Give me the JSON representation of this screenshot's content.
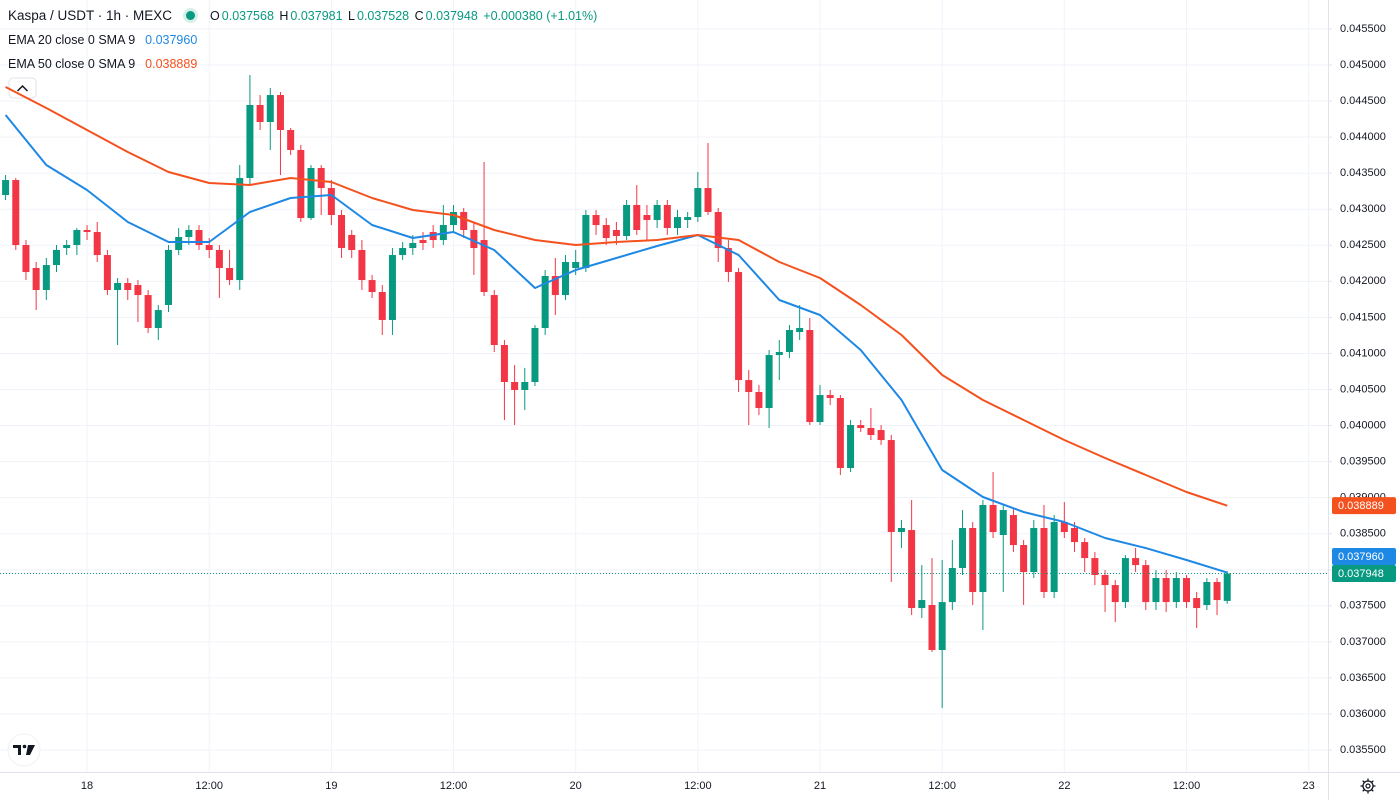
{
  "chart_data": {
    "type": "candlestick",
    "title": "Kaspa / USDT · 1h · MEXC",
    "ohlc_labels": [
      "O",
      "H",
      "L",
      "C"
    ],
    "change": "+0.000380 (+1.01%)",
    "up_color": "#089981",
    "down_color": "#f23645",
    "grid": true,
    "open": [
      0.043197,
      0.043405,
      0.042504,
      0.042185,
      0.04188,
      0.042226,
      0.042462,
      0.042504,
      0.042712,
      0.042684,
      0.042365,
      0.04188,
      0.041977,
      0.041949,
      0.04181,
      0.041353,
      0.041672,
      0.042435,
      0.042615,
      0.042712,
      0.042504,
      0.042435,
      0.042185,
      0.042018,
      0.043433,
      0.044446,
      0.04421,
      0.044584,
      0.044099,
      0.043822,
      0.042878,
      0.043572,
      0.043294,
      0.04292,
      0.042643,
      0.042435,
      0.042018,
      0.041852,
      0.041464,
      0.042365,
      0.042462,
      0.042573,
      0.042684,
      0.042573,
      0.042781,
      0.042962,
      0.042712,
      0.042573,
      0.04181,
      0.041117,
      0.040604,
      0.040493,
      0.040604,
      0.041353,
      0.042074,
      0.04181,
      0.042185,
      0.042185,
      0.04292,
      0.042781,
      0.042712,
      0.042629,
      0.043059,
      0.04292,
      0.042851,
      0.043059,
      0.04274,
      0.042851,
      0.042892,
      0.043294,
      0.042962,
      0.042462,
      0.042129,
      0.040631,
      0.040465,
      0.040243,
      0.040978,
      0.04102,
      0.041297,
      0.041325,
      0.040049,
      0.040423,
      0.040382,
      0.039411,
      0.040007,
      0.039966,
      0.039938,
      0.039799,
      0.038523,
      0.038551,
      0.037469,
      0.037511,
      0.036887,
      0.037552,
      0.038024,
      0.038579,
      0.037691,
      0.038898,
      0.038482,
      0.038759,
      0.038343,
      0.037968,
      0.038579,
      0.037691,
      0.038662,
      0.038579,
      0.038384,
      0.038162,
      0.037927,
      0.037788,
      0.037552,
      0.038162,
      0.038065,
      0.037552,
      0.037885,
      0.037552,
      0.037885,
      0.037608,
      0.037511,
      0.03783,
      0.037568
    ],
    "high": [
      0.043475,
      0.043433,
      0.042573,
      0.042268,
      0.042324,
      0.042504,
      0.042573,
      0.04274,
      0.042781,
      0.042823,
      0.042435,
      0.042046,
      0.042046,
      0.042018,
      0.04188,
      0.041672,
      0.042504,
      0.04274,
      0.042781,
      0.042781,
      0.042601,
      0.042504,
      0.042435,
      0.043613,
      0.044862,
      0.044584,
      0.044681,
      0.044626,
      0.044127,
      0.043891,
      0.043613,
      0.043613,
      0.043405,
      0.042989,
      0.042712,
      0.042573,
      0.042088,
      0.041949,
      0.042462,
      0.042546,
      0.042643,
      0.042684,
      0.042781,
      0.043059,
      0.043059,
      0.043017,
      0.042823,
      0.043655,
      0.04188,
      0.041186,
      0.040839,
      0.040798,
      0.041394,
      0.042157,
      0.042324,
      0.042365,
      0.042435,
      0.042989,
      0.042989,
      0.042878,
      0.042823,
      0.043128,
      0.043336,
      0.043059,
      0.043128,
      0.043128,
      0.042989,
      0.042962,
      0.043516,
      0.043919,
      0.043017,
      0.042573,
      0.042185,
      0.04077,
      0.040562,
      0.041048,
      0.041186,
      0.041394,
      0.041672,
      0.041491,
      0.040562,
      0.040493,
      0.040423,
      0.040077,
      0.040077,
      0.040243,
      0.040007,
      0.039869,
      0.03869,
      0.038967,
      0.038065,
      0.038162,
      0.038135,
      0.038412,
      0.038828,
      0.038662,
      0.038967,
      0.039355,
      0.038898,
      0.038856,
      0.038412,
      0.03869,
      0.038898,
      0.038759,
      0.038939,
      0.038662,
      0.03844,
      0.038246,
      0.037996,
      0.037857,
      0.038204,
      0.038301,
      0.038135,
      0.037996,
      0.037996,
      0.037968,
      0.037927,
      0.037691,
      0.037885,
      0.037885,
      0.037981
    ],
    "low": [
      0.043128,
      0.042435,
      0.042018,
      0.041602,
      0.041741,
      0.042129,
      0.042365,
      0.042365,
      0.042573,
      0.042268,
      0.04181,
      0.041117,
      0.041741,
      0.041436,
      0.041283,
      0.041186,
      0.041575,
      0.042365,
      0.042504,
      0.042435,
      0.042324,
      0.041769,
      0.041949,
      0.04188,
      0.043336,
      0.044099,
      0.043822,
      0.043475,
      0.043752,
      0.042823,
      0.042851,
      0.04292,
      0.042781,
      0.042324,
      0.042324,
      0.04188,
      0.041769,
      0.041256,
      0.041256,
      0.042296,
      0.042365,
      0.042435,
      0.042462,
      0.042504,
      0.042684,
      0.042601,
      0.042088,
      0.041796,
      0.04102,
      0.040077,
      0.040007,
      0.040215,
      0.040548,
      0.041256,
      0.041533,
      0.041741,
      0.042088,
      0.042129,
      0.042643,
      0.042504,
      0.042504,
      0.042573,
      0.042643,
      0.042573,
      0.04274,
      0.042643,
      0.042643,
      0.04274,
      0.042823,
      0.04292,
      0.042268,
      0.041991,
      0.040465,
      0.040007,
      0.040146,
      0.039966,
      0.040631,
      0.040937,
      0.041186,
      0.040007,
      0.040007,
      0.040285,
      0.039314,
      0.039355,
      0.03991,
      0.039799,
      0.03973,
      0.03783,
      0.038301,
      0.037372,
      0.03733,
      0.036859,
      0.036082,
      0.037441,
      0.037927,
      0.037511,
      0.037164,
      0.03844,
      0.037691,
      0.038246,
      0.037511,
      0.037885,
      0.037608,
      0.037608,
      0.03844,
      0.038246,
      0.037968,
      0.037788,
      0.037414,
      0.037275,
      0.037469,
      0.037968,
      0.037441,
      0.037441,
      0.037414,
      0.037469,
      0.037469,
      0.037192,
      0.037441,
      0.037372,
      0.037528
    ],
    "close": [
      0.043405,
      0.042504,
      0.042129,
      0.04188,
      0.042226,
      0.042435,
      0.042504,
      0.042712,
      0.042684,
      0.042365,
      0.04188,
      0.041977,
      0.04188,
      0.04181,
      0.041353,
      0.041602,
      0.042435,
      0.042615,
      0.042712,
      0.042504,
      0.042435,
      0.042185,
      0.042018,
      0.043433,
      0.044446,
      0.04421,
      0.044584,
      0.044099,
      0.043822,
      0.042878,
      0.043572,
      0.043294,
      0.04292,
      0.042462,
      0.042435,
      0.042018,
      0.041852,
      0.041464,
      0.042365,
      0.042462,
      0.042532,
      0.042532,
      0.042573,
      0.042781,
      0.042962,
      0.042712,
      0.042462,
      0.041852,
      0.041117,
      0.040604,
      0.040493,
      0.040604,
      0.041353,
      0.042074,
      0.04181,
      0.042268,
      0.042268,
      0.04292,
      0.042781,
      0.042601,
      0.042629,
      0.043059,
      0.042712,
      0.042851,
      0.043059,
      0.04274,
      0.042892,
      0.042892,
      0.043294,
      0.042962,
      0.042462,
      0.042129,
      0.040631,
      0.040465,
      0.040243,
      0.040978,
      0.04102,
      0.041325,
      0.041353,
      0.040049,
      0.040423,
      0.040382,
      0.039411,
      0.040007,
      0.039966,
      0.039869,
      0.039799,
      0.038523,
      0.038579,
      0.037469,
      0.03758,
      0.036887,
      0.037552,
      0.038024,
      0.038579,
      0.037691,
      0.038898,
      0.038523,
      0.038828,
      0.038343,
      0.037968,
      0.038579,
      0.037691,
      0.038662,
      0.038523,
      0.038384,
      0.038162,
      0.037927,
      0.037788,
      0.037552,
      0.038162,
      0.038065,
      0.037552,
      0.037885,
      0.037552,
      0.037885,
      0.037552,
      0.037469,
      0.03783,
      0.03758,
      0.037948
    ],
    "series": [
      {
        "name": "EMA 20 close 0 SMA 9",
        "color": "#1e88e5",
        "legend_value": "0.037960",
        "x": [
          0,
          4,
          8,
          12,
          16,
          20,
          24,
          28,
          32,
          36,
          40,
          44,
          48,
          52,
          56,
          60,
          64,
          68,
          72,
          76,
          80,
          84,
          88,
          92,
          96,
          100,
          104,
          108,
          112,
          116,
          120
        ],
        "values": [
          0.044307,
          0.043613,
          0.043267,
          0.042823,
          0.042546,
          0.042546,
          0.042962,
          0.043156,
          0.043197,
          0.042781,
          0.042601,
          0.042684,
          0.042435,
          0.041907,
          0.042157,
          0.042324,
          0.04249,
          0.042643,
          0.042365,
          0.041741,
          0.041533,
          0.041048,
          0.040354,
          0.039383,
          0.039009,
          0.038801,
          0.038662,
          0.03844,
          0.038301,
          0.038135,
          0.03796
        ]
      },
      {
        "name": "EMA 50 close 0 SMA 9",
        "color": "#f4511e",
        "legend_value": "0.038889",
        "x": [
          0,
          4,
          8,
          12,
          16,
          20,
          24,
          28,
          32,
          36,
          40,
          44,
          48,
          52,
          56,
          60,
          64,
          68,
          72,
          76,
          80,
          84,
          88,
          92,
          96,
          100,
          104,
          108,
          112,
          116,
          120
        ],
        "values": [
          0.044695,
          0.044404,
          0.044099,
          0.043794,
          0.043516,
          0.043364,
          0.043336,
          0.043433,
          0.043378,
          0.043156,
          0.042989,
          0.04292,
          0.042712,
          0.042573,
          0.042504,
          0.042546,
          0.042573,
          0.042643,
          0.042573,
          0.042268,
          0.042046,
          0.041672,
          0.041256,
          0.040701,
          0.040354,
          0.040077,
          0.039799,
          0.03955,
          0.039314,
          0.039078,
          0.038889
        ]
      }
    ],
    "xlim": [
      -0.55,
      129.9
    ],
    "xticks": [
      {
        "value": 8,
        "label": "18"
      },
      {
        "value": 20,
        "label": "12:00"
      },
      {
        "value": 32,
        "label": "19"
      },
      {
        "value": 44,
        "label": "12:00"
      },
      {
        "value": 56,
        "label": "20"
      },
      {
        "value": 68,
        "label": "12:00"
      },
      {
        "value": 80,
        "label": "21"
      },
      {
        "value": 92,
        "label": "12:00"
      },
      {
        "value": 104,
        "label": "22"
      },
      {
        "value": 116,
        "label": "12:00"
      },
      {
        "value": 128,
        "label": "23"
      }
    ],
    "ylim": [
      0.035195,
      0.045902
    ],
    "yticks": [
      {
        "value": 0.0355,
        "label": "0.035500"
      },
      {
        "value": 0.036,
        "label": "0.036000"
      },
      {
        "value": 0.0365,
        "label": "0.036500"
      },
      {
        "value": 0.037,
        "label": "0.037000"
      },
      {
        "value": 0.0375,
        "label": "0.037500"
      },
      {
        "value": 0.038,
        "label": "0.038000"
      },
      {
        "value": 0.0385,
        "label": "0.038500"
      },
      {
        "value": 0.039,
        "label": "0.039000"
      },
      {
        "value": 0.0395,
        "label": "0.039500"
      },
      {
        "value": 0.04,
        "label": "0.040000"
      },
      {
        "value": 0.0405,
        "label": "0.040500"
      },
      {
        "value": 0.041,
        "label": "0.041000"
      },
      {
        "value": 0.0415,
        "label": "0.041500"
      },
      {
        "value": 0.042,
        "label": "0.042000"
      },
      {
        "value": 0.0425,
        "label": "0.042500"
      },
      {
        "value": 0.043,
        "label": "0.043000"
      },
      {
        "value": 0.0435,
        "label": "0.043500"
      },
      {
        "value": 0.044,
        "label": "0.044000"
      },
      {
        "value": 0.0445,
        "label": "0.044500"
      },
      {
        "value": 0.045,
        "label": "0.045000"
      },
      {
        "value": 0.0455,
        "label": "0.045500"
      }
    ]
  }
}
